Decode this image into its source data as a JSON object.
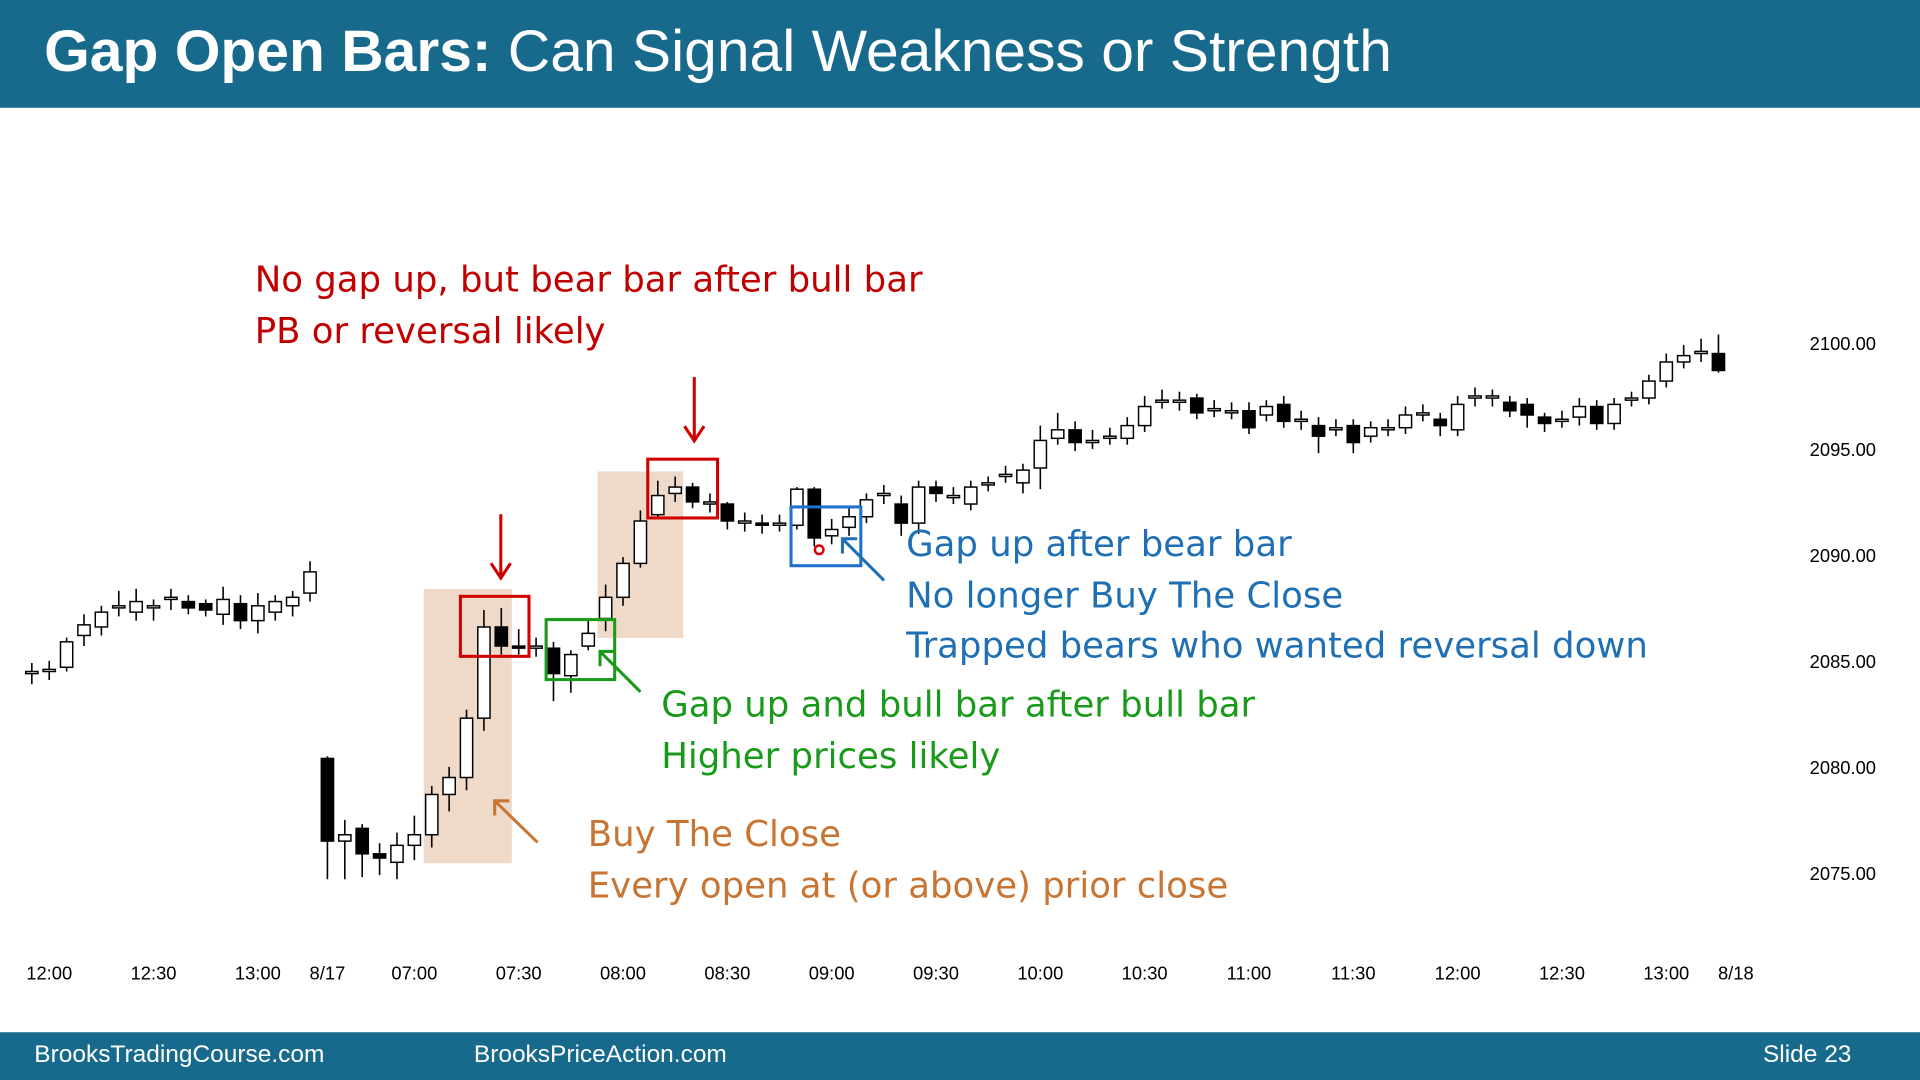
{
  "header": {
    "title_bold": "Gap Open Bars:",
    "title_rest": "Can Signal Weakness or Strength"
  },
  "chart_data": {
    "type": "candlestick",
    "categories": [
      null,
      "12:00",
      null,
      null,
      null,
      null,
      null,
      "12:30",
      null,
      null,
      null,
      null,
      null,
      "13:00",
      null,
      null,
      null,
      "8/17",
      null,
      null,
      null,
      null,
      "07:00",
      null,
      null,
      null,
      null,
      null,
      "07:30",
      null,
      null,
      null,
      null,
      null,
      "08:00",
      null,
      null,
      null,
      null,
      null,
      "08:30",
      null,
      null,
      null,
      null,
      null,
      "09:00",
      null,
      null,
      null,
      null,
      null,
      "09:30",
      null,
      null,
      null,
      null,
      null,
      "10:00",
      null,
      null,
      null,
      null,
      null,
      "10:30",
      null,
      null,
      null,
      null,
      null,
      "11:00",
      null,
      null,
      null,
      null,
      null,
      "11:30",
      null,
      null,
      null,
      null,
      null,
      "12:00",
      null,
      null,
      null,
      null,
      null,
      "12:30",
      null,
      null,
      null,
      null,
      null,
      "13:00",
      null,
      null,
      null,
      "8/18"
    ],
    "open": [
      2084.5,
      2084.6,
      2084.8,
      2086.3,
      2086.7,
      2087.6,
      2087.4,
      2087.6,
      2088.0,
      2087.9,
      2087.8,
      2087.3,
      2087.8,
      2087.0,
      2087.4,
      2087.7,
      2088.3,
      2080.5,
      2076.6,
      2077.2,
      2076.0,
      2075.6,
      2076.4,
      2076.9,
      2078.8,
      2079.6,
      2082.4,
      2086.7,
      2085.8,
      2085.7,
      2085.7,
      2084.4,
      2085.8,
      2087.1,
      2088.1,
      2089.7,
      2092.0,
      2093.0,
      2093.3,
      2092.5,
      2092.5,
      2091.6,
      2091.6,
      2091.5,
      2091.5,
      2093.2,
      2091.0,
      2091.4,
      2091.9,
      2092.9,
      2092.5,
      2091.6,
      2093.3,
      2092.8,
      2092.5,
      2093.4,
      2093.8,
      2093.5,
      2094.2,
      2095.6,
      2096.0,
      2095.4,
      2095.6,
      2095.6,
      2096.2,
      2097.3,
      2097.3,
      2097.5,
      2096.9,
      2096.8,
      2096.9,
      2096.7,
      2097.2,
      2096.4,
      2096.2,
      2096.0,
      2096.2,
      2095.7,
      2096.0,
      2096.1,
      2096.7,
      2096.5,
      2096.0,
      2097.5,
      2097.5,
      2097.3,
      2097.2,
      2096.6,
      2096.4,
      2096.6,
      2097.1,
      2096.3,
      2097.4,
      2097.5,
      2098.3,
      2099.2,
      2099.6,
      2099.6,
      null
    ],
    "high": [
      2085.0,
      2085.1,
      2086.2,
      2087.3,
      2087.7,
      2088.4,
      2088.5,
      2088.0,
      2088.5,
      2088.2,
      2088.0,
      2088.6,
      2088.2,
      2088.3,
      2088.2,
      2088.4,
      2089.8,
      2080.6,
      2077.6,
      2077.4,
      2076.5,
      2077.0,
      2077.8,
      2079.2,
      2080.1,
      2082.8,
      2087.5,
      2087.6,
      2086.6,
      2086.2,
      2086.0,
      2085.6,
      2087.0,
      2088.7,
      2090.0,
      2092.2,
      2093.6,
      2093.8,
      2093.5,
      2093.0,
      2092.6,
      2092.1,
      2092.0,
      2092.0,
      2093.3,
      2093.3,
      2091.8,
      2092.3,
      2093.0,
      2093.4,
      2092.9,
      2093.6,
      2093.6,
      2093.3,
      2093.6,
      2093.8,
      2094.3,
      2094.4,
      2096.2,
      2096.8,
      2096.4,
      2096.0,
      2096.1,
      2096.6,
      2097.6,
      2097.9,
      2097.8,
      2097.7,
      2097.4,
      2097.3,
      2097.3,
      2097.4,
      2097.6,
      2096.9,
      2096.6,
      2096.5,
      2096.5,
      2096.4,
      2096.5,
      2097.1,
      2097.2,
      2096.8,
      2097.6,
      2098.0,
      2097.9,
      2097.6,
      2097.5,
      2096.8,
      2096.9,
      2097.5,
      2097.4,
      2097.5,
      2097.8,
      2098.6,
      2099.6,
      2100.0,
      2100.3,
      2100.5,
      null
    ],
    "low": [
      2084.0,
      2084.2,
      2084.6,
      2085.8,
      2086.3,
      2087.2,
      2087.0,
      2087.0,
      2087.5,
      2087.3,
      2087.2,
      2086.8,
      2086.6,
      2086.4,
      2087.0,
      2087.2,
      2087.9,
      2074.8,
      2074.8,
      2074.9,
      2075.0,
      2074.8,
      2075.7,
      2076.3,
      2078.0,
      2079.0,
      2081.8,
      2085.4,
      2085.4,
      2085.3,
      2083.2,
      2083.6,
      2085.6,
      2086.5,
      2087.7,
      2089.5,
      2091.8,
      2092.6,
      2092.3,
      2092.1,
      2091.3,
      2091.2,
      2091.1,
      2091.2,
      2091.3,
      2090.5,
      2090.6,
      2091.0,
      2091.6,
      2092.5,
      2091.0,
      2091.1,
      2092.6,
      2092.5,
      2092.2,
      2093.1,
      2093.5,
      2093.0,
      2093.2,
      2095.3,
      2095.0,
      2095.1,
      2095.3,
      2095.3,
      2095.9,
      2097.0,
      2096.9,
      2096.5,
      2096.6,
      2096.5,
      2095.8,
      2096.4,
      2096.1,
      2096.0,
      2094.9,
      2095.7,
      2094.9,
      2095.4,
      2095.7,
      2095.8,
      2096.4,
      2095.7,
      2095.7,
      2097.1,
      2097.1,
      2096.6,
      2096.1,
      2095.9,
      2096.1,
      2096.2,
      2096.0,
      2096.0,
      2097.1,
      2097.2,
      2098.0,
      2098.9,
      2099.2,
      2098.7,
      null
    ],
    "close": [
      2084.6,
      2084.7,
      2086.0,
      2086.8,
      2087.4,
      2087.7,
      2087.9,
      2087.7,
      2088.1,
      2087.6,
      2087.5,
      2088.0,
      2087.0,
      2087.7,
      2087.9,
      2088.1,
      2089.3,
      2076.6,
      2076.9,
      2076.0,
      2075.8,
      2076.4,
      2076.9,
      2078.8,
      2079.6,
      2082.4,
      2086.7,
      2085.8,
      2085.7,
      2085.8,
      2084.5,
      2085.4,
      2086.4,
      2088.1,
      2089.7,
      2091.7,
      2092.9,
      2093.3,
      2092.6,
      2092.6,
      2091.7,
      2091.7,
      2091.5,
      2091.6,
      2093.2,
      2090.9,
      2091.3,
      2091.9,
      2092.7,
      2093.0,
      2091.6,
      2093.3,
      2093.0,
      2092.9,
      2093.3,
      2093.5,
      2093.9,
      2094.1,
      2095.5,
      2096.0,
      2095.4,
      2095.5,
      2095.7,
      2096.2,
      2097.1,
      2097.4,
      2097.4,
      2096.8,
      2097.0,
      2096.9,
      2096.1,
      2097.1,
      2096.4,
      2096.5,
      2095.7,
      2096.1,
      2095.4,
      2096.1,
      2096.1,
      2096.7,
      2096.8,
      2096.2,
      2097.2,
      2097.6,
      2097.6,
      2096.9,
      2096.7,
      2096.3,
      2096.5,
      2097.1,
      2096.3,
      2097.2,
      2097.5,
      2098.3,
      2099.2,
      2099.5,
      2099.7,
      2098.8,
      null
    ],
    "ylim": [
      2071.8,
      2110.5
    ],
    "yticks": [
      {
        "value": 2075,
        "label": "2075.00"
      },
      {
        "value": 2080,
        "label": "2080.00"
      },
      {
        "value": 2085,
        "label": "2085.00"
      },
      {
        "value": 2090,
        "label": "2090.00"
      },
      {
        "value": 2095,
        "label": "2095.00"
      },
      {
        "value": 2100,
        "label": "2100.00"
      }
    ],
    "bull_color": "#ffffff",
    "bear_color": "#000000",
    "annotations": [
      {
        "color": "#c00000",
        "lines": [
          "No gap up, but bear bar after bull bar",
          "PB or reversal likely"
        ]
      },
      {
        "color": "#1f6fb4",
        "lines": [
          "Gap up after bear bar",
          "No longer Buy The Close",
          "Trapped bears who wanted reversal down"
        ]
      },
      {
        "color": "#1a9a1a",
        "lines": [
          "Gap up and bull bar after bull bar",
          "Higher prices likely"
        ]
      },
      {
        "color": "#c87533",
        "lines": [
          "Buy The Close",
          "Every open at (or above) prior close"
        ]
      }
    ]
  },
  "footer": {
    "left": "BrooksTradingCourse.com",
    "center": "BrooksPriceAction.com",
    "right": "Slide  23"
  }
}
